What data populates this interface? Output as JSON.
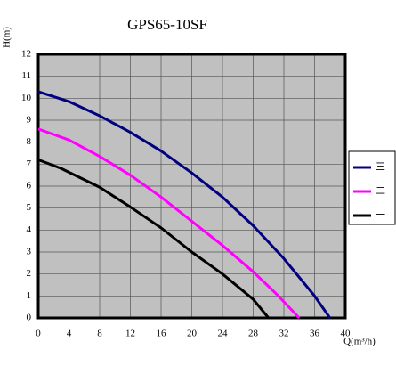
{
  "chart_data": {
    "type": "line",
    "title": "GPS65-10SF",
    "y_label": "H(m)",
    "x_label": "Q(m³/h)",
    "xlim": [
      0,
      40
    ],
    "xticks": [
      0,
      4,
      8,
      12,
      16,
      20,
      24,
      28,
      32,
      36,
      40
    ],
    "ylim": [
      0,
      12
    ],
    "yticks": [
      0,
      1,
      2,
      3,
      4,
      5,
      6,
      7,
      8,
      9,
      10,
      11,
      12
    ],
    "grid": true,
    "legend": "right",
    "series": [
      {
        "name": "三",
        "color": "#000080",
        "x": [
          0,
          4,
          8,
          12,
          16,
          20,
          24,
          28,
          32,
          36,
          38
        ],
        "values": [
          10.3,
          9.85,
          9.2,
          8.45,
          7.6,
          6.6,
          5.5,
          4.2,
          2.7,
          1.0,
          0
        ]
      },
      {
        "name": "二",
        "color": "#ff00ff",
        "x": [
          0,
          4,
          8,
          12,
          16,
          20,
          24,
          28,
          31,
          34
        ],
        "values": [
          8.6,
          8.1,
          7.35,
          6.5,
          5.5,
          4.4,
          3.3,
          2.1,
          1.1,
          0
        ]
      },
      {
        "name": "一",
        "color": "#000000",
        "x": [
          0,
          3,
          8,
          12,
          16,
          20,
          24,
          28,
          30
        ],
        "values": [
          7.2,
          6.8,
          5.95,
          5.05,
          4.1,
          3.0,
          2.0,
          0.85,
          0
        ]
      }
    ]
  }
}
